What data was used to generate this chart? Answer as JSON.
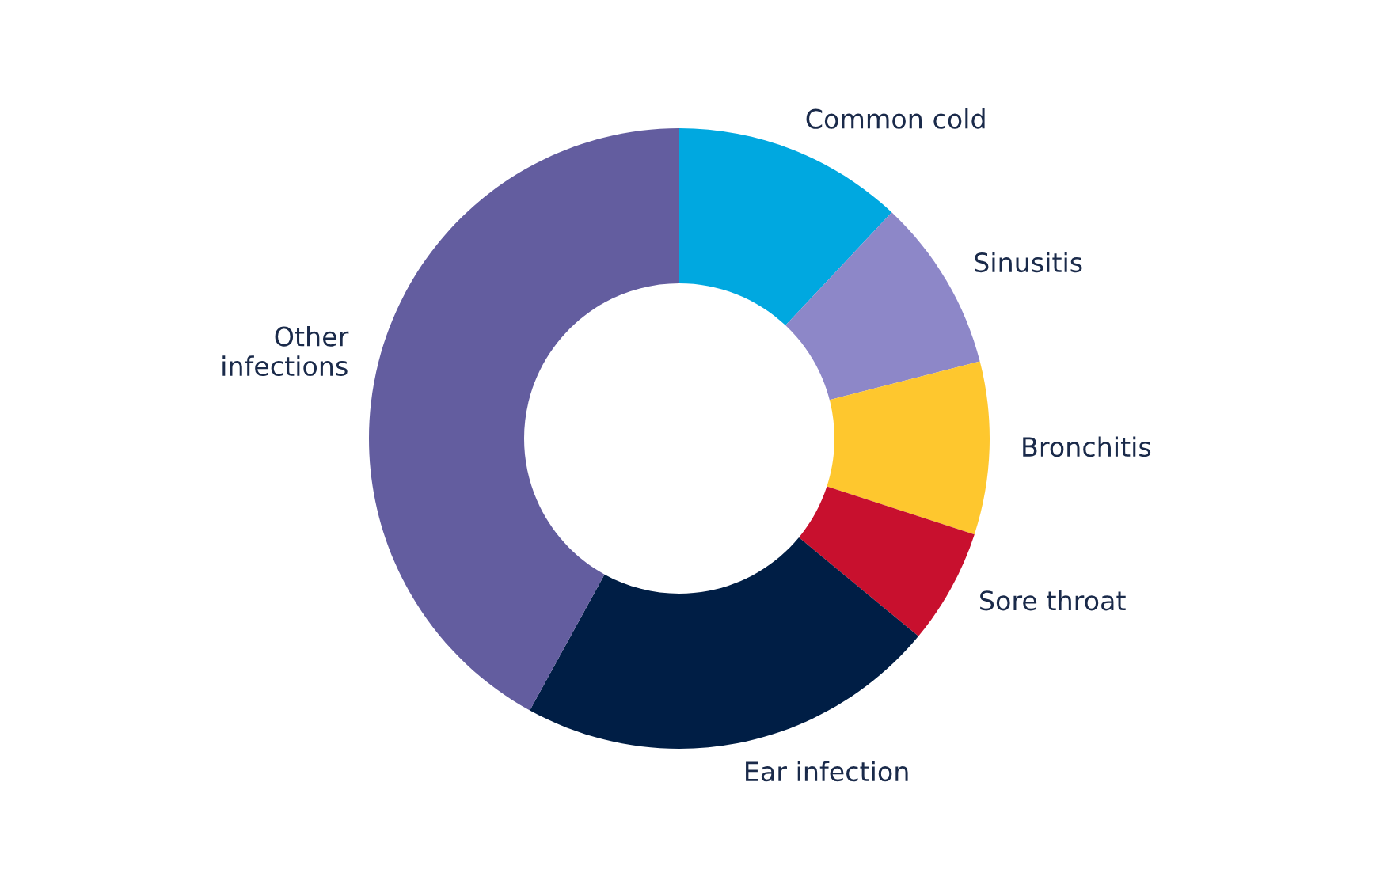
{
  "chart_data": {
    "type": "donut",
    "categories": [
      "Common cold",
      "Sinusitis",
      "Bronchitis",
      "Sore throat",
      "Ear infection",
      "Other\ninfections"
    ],
    "values": [
      12,
      9,
      9,
      6,
      22,
      42
    ],
    "colors": [
      "#00a8e0",
      "#8d87c8",
      "#fec72e",
      "#c8102e",
      "#001e45",
      "#635d9f"
    ],
    "legend": false
  }
}
